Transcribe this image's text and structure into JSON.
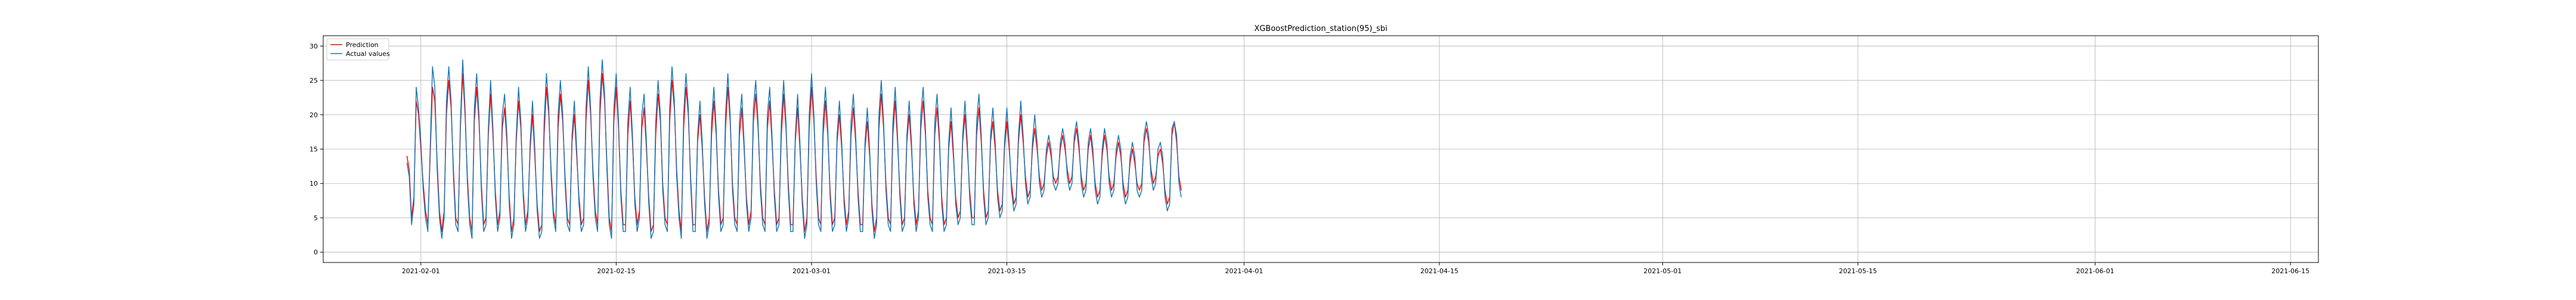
{
  "chart_data": {
    "type": "line",
    "title": "XGBoostPrediction_station(95)_sbi",
    "xlabel": "",
    "ylabel": "",
    "x_range": [
      "2021-01-25",
      "2021-06-17"
    ],
    "ylim": [
      -1.5,
      31.5
    ],
    "x_ticks": [
      "2021-02-01",
      "2021-02-15",
      "2021-03-01",
      "2021-03-15",
      "2021-04-01",
      "2021-04-15",
      "2021-05-01",
      "2021-05-15",
      "2021-06-01",
      "2021-06-15"
    ],
    "y_ticks": [
      0,
      5,
      10,
      15,
      20,
      25,
      30
    ],
    "grid": true,
    "legend_position": "top-left",
    "series": [
      {
        "name": "Prediction",
        "color": "#ff0000",
        "start": "2021-01-31",
        "step_hours": 4,
        "values": [
          14,
          12,
          5,
          8,
          22,
          20,
          15,
          10,
          6,
          4,
          14,
          24,
          22,
          13,
          6,
          3,
          6,
          20,
          25,
          21,
          12,
          5,
          4,
          18,
          26,
          20,
          11,
          5,
          3,
          19,
          24,
          19,
          10,
          4,
          5,
          17,
          23,
          17,
          9,
          4,
          6,
          18,
          21,
          16,
          8,
          3,
          5,
          16,
          22,
          18,
          9,
          4,
          6,
          15,
          20,
          14,
          7,
          3,
          4,
          17,
          24,
          20,
          12,
          6,
          4,
          18,
          23,
          19,
          11,
          5,
          4,
          16,
          20,
          14,
          8,
          4,
          5,
          19,
          25,
          20,
          12,
          6,
          4,
          20,
          26,
          22,
          13,
          5,
          3,
          19,
          24,
          18,
          9,
          4,
          4,
          17,
          22,
          16,
          8,
          4,
          6,
          18,
          21,
          15,
          8,
          3,
          4,
          17,
          23,
          19,
          10,
          5,
          4,
          19,
          25,
          21,
          12,
          6,
          3,
          18,
          24,
          20,
          11,
          4,
          4,
          16,
          20,
          15,
          8,
          3,
          5,
          17,
          22,
          17,
          9,
          4,
          5,
          18,
          24,
          19,
          10,
          5,
          4,
          17,
          21,
          15,
          8,
          4,
          6,
          19,
          23,
          18,
          10,
          5,
          4,
          18,
          22,
          16,
          9,
          4,
          5,
          17,
          23,
          18,
          10,
          4,
          4,
          16,
          21,
          15,
          8,
          3,
          5,
          18,
          24,
          19,
          11,
          5,
          4,
          17,
          22,
          17,
          9,
          4,
          5,
          16,
          20,
          15,
          8,
          4,
          6,
          17,
          21,
          16,
          9,
          4,
          4,
          15,
          19,
          14,
          7,
          3,
          5,
          18,
          23,
          18,
          10,
          5,
          4,
          17,
          22,
          16,
          9,
          4,
          5,
          16,
          20,
          15,
          8,
          4,
          6,
          18,
          22,
          17,
          9,
          5,
          4,
          17,
          21,
          16,
          8,
          4,
          5,
          15,
          19,
          14,
          8,
          5,
          6,
          16,
          20,
          15,
          9,
          5,
          5,
          17,
          21,
          16,
          9,
          5,
          6,
          16,
          19,
          15,
          9,
          6,
          7,
          15,
          19,
          15,
          10,
          7,
          8,
          16,
          20,
          16,
          11,
          8,
          9,
          15,
          18,
          15,
          11,
          9,
          10,
          14,
          16,
          14,
          11,
          10,
          11,
          15,
          17,
          15,
          12,
          10,
          11,
          16,
          18,
          15,
          11,
          9,
          10,
          15,
          17,
          14,
          10,
          8,
          9,
          14,
          17,
          15,
          11,
          9,
          10,
          14,
          16,
          14,
          10,
          8,
          9,
          13,
          15,
          13,
          10,
          9,
          10,
          16,
          18,
          16,
          12,
          10,
          11,
          14,
          15,
          13,
          9,
          7,
          8,
          17,
          19,
          16,
          11,
          9
        ]
      },
      {
        "name": "Actual values",
        "color": "#1f77b4",
        "start": "2021-01-31",
        "step_hours": 4,
        "values": [
          13,
          11,
          4,
          7,
          24,
          21,
          16,
          9,
          5,
          3,
          15,
          27,
          24,
          12,
          5,
          2,
          5,
          22,
          27,
          22,
          11,
          4,
          3,
          19,
          28,
          21,
          10,
          4,
          2,
          21,
          26,
          20,
          9,
          3,
          4,
          18,
          25,
          18,
          8,
          3,
          5,
          20,
          23,
          17,
          7,
          2,
          4,
          17,
          24,
          19,
          8,
          3,
          5,
          16,
          22,
          15,
          6,
          2,
          3,
          19,
          26,
          21,
          11,
          5,
          3,
          20,
          25,
          20,
          10,
          4,
          3,
          17,
          22,
          15,
          7,
          3,
          4,
          21,
          27,
          21,
          11,
          5,
          3,
          22,
          28,
          23,
          12,
          4,
          2,
          21,
          26,
          19,
          8,
          3,
          3,
          19,
          24,
          17,
          7,
          3,
          5,
          20,
          23,
          16,
          7,
          2,
          3,
          19,
          25,
          20,
          9,
          4,
          3,
          21,
          27,
          22,
          11,
          5,
          2,
          20,
          26,
          21,
          10,
          3,
          3,
          17,
          22,
          16,
          7,
          2,
          4,
          19,
          24,
          18,
          8,
          3,
          4,
          20,
          26,
          20,
          9,
          4,
          3,
          19,
          23,
          16,
          7,
          3,
          5,
          21,
          25,
          19,
          9,
          4,
          3,
          20,
          24,
          17,
          8,
          3,
          4,
          19,
          25,
          19,
          9,
          3,
          3,
          17,
          23,
          16,
          7,
          2,
          4,
          20,
          26,
          20,
          10,
          4,
          3,
          19,
          24,
          18,
          8,
          3,
          4,
          17,
          22,
          16,
          7,
          3,
          5,
          19,
          23,
          17,
          8,
          3,
          3,
          16,
          21,
          15,
          6,
          2,
          4,
          20,
          25,
          19,
          9,
          4,
          3,
          19,
          24,
          17,
          8,
          3,
          4,
          17,
          22,
          16,
          7,
          3,
          5,
          20,
          24,
          18,
          8,
          4,
          3,
          19,
          23,
          17,
          7,
          3,
          4,
          16,
          21,
          15,
          7,
          4,
          5,
          17,
          22,
          16,
          8,
          4,
          4,
          19,
          23,
          17,
          8,
          4,
          5,
          17,
          21,
          16,
          8,
          5,
          6,
          16,
          21,
          16,
          9,
          6,
          7,
          17,
          22,
          17,
          10,
          7,
          8,
          16,
          20,
          16,
          10,
          8,
          9,
          15,
          17,
          15,
          10,
          9,
          10,
          16,
          18,
          16,
          11,
          9,
          10,
          17,
          19,
          16,
          10,
          8,
          9,
          16,
          18,
          15,
          9,
          7,
          8,
          15,
          18,
          16,
          10,
          8,
          9,
          15,
          17,
          15,
          9,
          7,
          8,
          14,
          16,
          14,
          9,
          8,
          9,
          17,
          19,
          17,
          11,
          9,
          10,
          15,
          16,
          14,
          8,
          6,
          7,
          18,
          19,
          17,
          10,
          8
        ]
      }
    ]
  }
}
